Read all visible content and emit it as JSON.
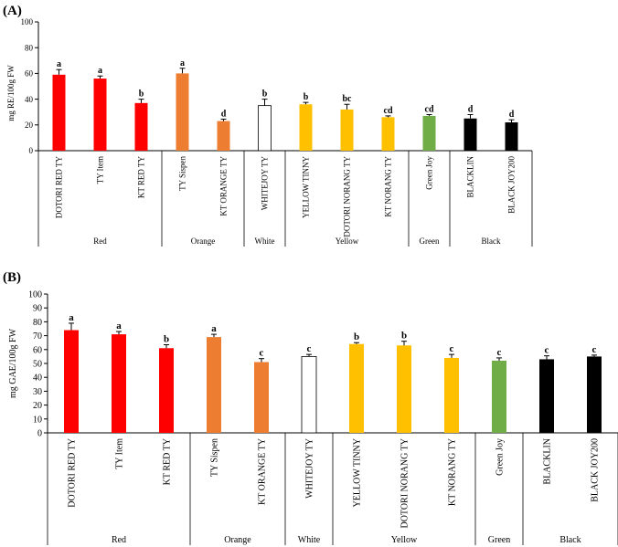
{
  "chart_data": [
    {
      "type": "bar",
      "panel_label": "(A)",
      "ylabel": "mg RE/100g FW",
      "ylim": [
        0,
        100
      ],
      "yticks": [
        0,
        20,
        40,
        60,
        80,
        100
      ],
      "categories": [
        "DOTORI RED TY",
        "TY Item",
        "KT RED TY",
        "TY Sispen",
        "KT ORANGE TY",
        "WHITEJOY TY",
        "YELLOW TINNY",
        "DOTORI NORANG TY",
        "KT NORANG TY",
        "Green Joy",
        "BLACKLIN",
        "BLACK JOY200"
      ],
      "values": [
        59,
        56,
        37,
        60,
        23,
        35,
        36,
        32,
        26,
        27,
        25,
        22
      ],
      "errors": [
        4,
        2,
        3,
        4,
        1.5,
        5,
        1.5,
        4,
        1,
        1,
        3,
        2
      ],
      "letters": [
        "a",
        "a",
        "b",
        "a",
        "d",
        "b",
        "b",
        "bc",
        "cd",
        "cd",
        "d",
        "d"
      ],
      "groups": [
        {
          "name": "Red",
          "count": 3
        },
        {
          "name": "Orange",
          "count": 2
        },
        {
          "name": "White",
          "count": 1
        },
        {
          "name": "Yellow",
          "count": 3
        },
        {
          "name": "Green",
          "count": 1
        },
        {
          "name": "Black",
          "count": 2
        }
      ]
    },
    {
      "type": "bar",
      "panel_label": "(B)",
      "ylabel": "mg GAE/100g FW",
      "ylim": [
        0,
        100
      ],
      "yticks": [
        0,
        10,
        20,
        30,
        40,
        50,
        60,
        70,
        80,
        90,
        100
      ],
      "categories": [
        "DOTORI RED TY",
        "TY Item",
        "KT RED TY",
        "TY Sispen",
        "KT ORANGE TY",
        "WHITEJOY TY",
        "YELLOW TINNY",
        "DOTORI NORANG TY",
        "KT NORANG TY",
        "Green Joy",
        "BLACKLIN",
        "BLACK JOY200"
      ],
      "values": [
        74,
        71,
        61,
        69,
        51,
        55,
        64,
        63,
        54,
        52,
        53,
        55
      ],
      "errors": [
        5,
        2,
        2.5,
        2,
        2.5,
        1.5,
        1,
        3,
        2.5,
        2,
        2.5,
        1
      ],
      "letters": [
        "a",
        "a",
        "b",
        "a",
        "c",
        "c",
        "b",
        "b",
        "c",
        "c",
        "c",
        "c"
      ],
      "groups": [
        {
          "name": "Red",
          "count": 3
        },
        {
          "name": "Orange",
          "count": 2
        },
        {
          "name": "White",
          "count": 1
        },
        {
          "name": "Yellow",
          "count": 3
        },
        {
          "name": "Green",
          "count": 1
        },
        {
          "name": "Black",
          "count": 2
        }
      ]
    }
  ],
  "colors": {
    "Red": "#ff0000",
    "Orange": "#ed7d31",
    "White": "#ffffff",
    "Yellow": "#ffc000",
    "Green": "#70ad47",
    "Black": "#000000"
  }
}
